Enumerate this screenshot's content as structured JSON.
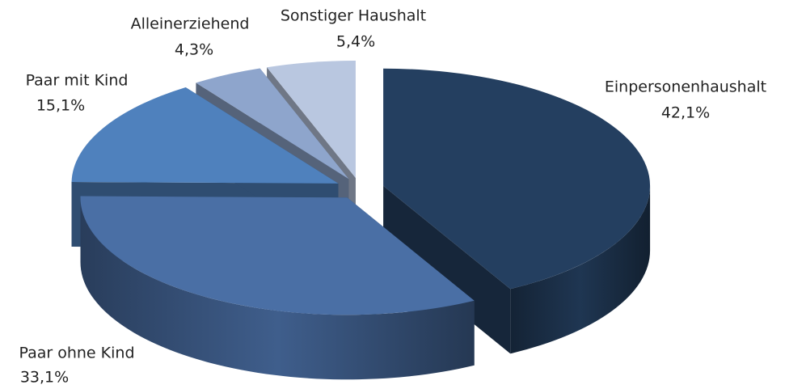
{
  "chart_data": {
    "type": "pie3d",
    "categories": [
      "Einpersonenhaushalt",
      "Paar ohne Kind",
      "Paar mit Kind",
      "Alleinerziehend",
      "Sonstiger Haushalt"
    ],
    "values": [
      42.1,
      33.1,
      15.1,
      4.3,
      5.4
    ],
    "value_labels": [
      "42,1%",
      "33,1%",
      "15,1%",
      "4,3%",
      "5,4%"
    ],
    "colors": [
      "#243f60",
      "#4a6fa5",
      "#4f81bd",
      "#8ea5cc",
      "#b9c7e0"
    ]
  }
}
